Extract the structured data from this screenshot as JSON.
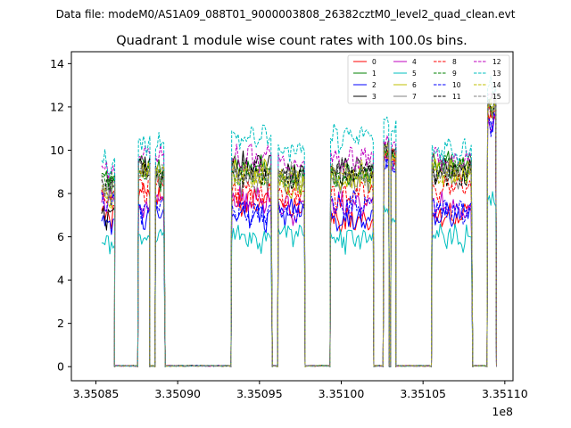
{
  "chart_data": {
    "type": "line",
    "suptitle": "Data file: modeM0/AS1A09_088T01_9000003808_26382cztM0_level2_quad_clean.evt",
    "title": "Quadrant 1 module wise count rates with 100.0s bins.",
    "xlabel": "",
    "ylabel": "",
    "x_offset_label": "1e8",
    "xlim": [
      3.350835,
      3.351105
    ],
    "ylim": [
      -0.65,
      14.55
    ],
    "x_ticks": [
      3.35085,
      3.3509,
      3.35095,
      3.351,
      3.35105,
      3.3511
    ],
    "x_tick_labels": [
      "3.35085",
      "3.35090",
      "3.35095",
      "3.35100",
      "3.35105",
      "3.35110"
    ],
    "y_ticks": [
      0,
      2,
      4,
      6,
      8,
      10,
      12,
      14
    ],
    "y_tick_labels": [
      "0",
      "2",
      "4",
      "6",
      "8",
      "10",
      "12",
      "14"
    ],
    "legend_location": "top-right",
    "legend_columns": 4,
    "segments": [
      [
        3.3508535,
        3.350861
      ],
      [
        3.350876,
        3.3508825
      ],
      [
        3.3508865,
        3.350892
      ],
      [
        3.350933,
        3.3509575
      ],
      [
        3.3509615,
        3.3509775
      ],
      [
        3.3509935,
        3.3510195
      ],
      [
        3.351026,
        3.351029
      ],
      [
        3.3510305,
        3.351033
      ],
      [
        3.3510555,
        3.35108
      ],
      [
        3.3510895,
        3.3510945
      ]
    ],
    "series": [
      {
        "name": "0",
        "color": "#ff0000",
        "dashed": false,
        "levels": [
          7.0,
          7.8,
          7.6,
          7.6,
          7.4,
          6.7,
          9.5,
          9.6,
          6.9,
          11.4
        ]
      },
      {
        "name": "1",
        "color": "#008000",
        "dashed": false,
        "levels": [
          8.6,
          9.1,
          8.9,
          9.1,
          8.6,
          8.9,
          9.8,
          9.5,
          9.4,
          12.3
        ]
      },
      {
        "name": "2",
        "color": "#0000ff",
        "dashed": false,
        "levels": [
          6.6,
          7.0,
          7.1,
          6.9,
          7.1,
          6.8,
          9.1,
          8.9,
          7.0,
          11.3
        ]
      },
      {
        "name": "3",
        "color": "#000000",
        "dashed": false,
        "levels": [
          6.9,
          9.4,
          8.9,
          9.3,
          8.9,
          9.2,
          10.1,
          9.8,
          9.1,
          12.0
        ]
      },
      {
        "name": "4",
        "color": "#bf00bf",
        "dashed": false,
        "levels": [
          7.6,
          7.2,
          7.6,
          7.7,
          7.2,
          7.5,
          9.3,
          9.2,
          7.4,
          11.2
        ]
      },
      {
        "name": "5",
        "color": "#00bfbf",
        "dashed": false,
        "levels": [
          5.4,
          6.0,
          5.8,
          5.9,
          6.1,
          5.9,
          7.0,
          6.6,
          5.9,
          7.5
        ]
      },
      {
        "name": "6",
        "color": "#bfbf00",
        "dashed": false,
        "levels": [
          7.9,
          8.9,
          8.7,
          8.9,
          8.3,
          8.6,
          9.6,
          9.4,
          8.9,
          11.9
        ]
      },
      {
        "name": "7",
        "color": "#808080",
        "dashed": false,
        "levels": [
          8.0,
          8.8,
          8.5,
          8.6,
          8.4,
          8.7,
          9.7,
          9.3,
          8.8,
          11.8
        ]
      },
      {
        "name": "8",
        "color": "#ff0000",
        "dashed": true,
        "levels": [
          7.8,
          8.2,
          8.3,
          8.0,
          8.1,
          7.9,
          9.6,
          9.4,
          8.3,
          11.5
        ]
      },
      {
        "name": "9",
        "color": "#008000",
        "dashed": true,
        "levels": [
          8.5,
          9.0,
          8.8,
          8.9,
          8.7,
          8.9,
          9.7,
          9.4,
          9.2,
          12.1
        ]
      },
      {
        "name": "10",
        "color": "#0000ff",
        "dashed": true,
        "levels": [
          7.6,
          7.1,
          7.4,
          7.1,
          7.2,
          7.5,
          9.2,
          9.0,
          7.3,
          11.3
        ]
      },
      {
        "name": "11",
        "color": "#000000",
        "dashed": true,
        "levels": [
          8.3,
          8.9,
          8.7,
          8.8,
          8.6,
          8.8,
          9.9,
          9.6,
          8.9,
          12.0
        ]
      },
      {
        "name": "12",
        "color": "#bf00bf",
        "dashed": true,
        "levels": [
          8.9,
          9.7,
          9.5,
          9.6,
          9.4,
          9.5,
          10.2,
          10.0,
          9.6,
          12.4
        ]
      },
      {
        "name": "13",
        "color": "#00bfbf",
        "dashed": true,
        "levels": [
          9.4,
          10.2,
          10.1,
          10.6,
          10.0,
          10.5,
          11.2,
          10.9,
          10.0,
          12.7
        ]
      },
      {
        "name": "14",
        "color": "#bfbf00",
        "dashed": true,
        "levels": [
          8.1,
          9.0,
          8.9,
          8.8,
          8.6,
          8.9,
          9.9,
          9.6,
          9.0,
          12.0
        ]
      },
      {
        "name": "15",
        "color": "#808080",
        "dashed": true,
        "levels": [
          8.4,
          9.1,
          9.0,
          9.0,
          8.8,
          9.1,
          10.0,
          9.7,
          9.1,
          12.1
        ]
      }
    ]
  }
}
